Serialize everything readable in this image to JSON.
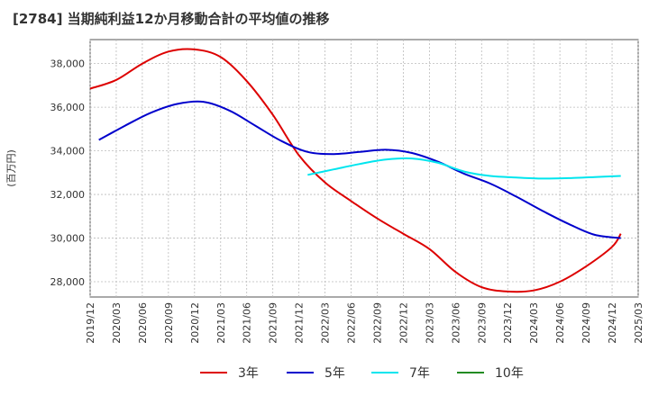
{
  "chart_data": {
    "type": "line",
    "title": "[2784]  当期純利益12か月移動合計の平均値の推移",
    "ylabel": "(百万円)",
    "xlabel": "",
    "ylim": [
      27300,
      39100
    ],
    "yticks": [
      28000,
      30000,
      32000,
      34000,
      36000,
      38000
    ],
    "ytick_labels": [
      "28,000",
      "30,000",
      "32,000",
      "34,000",
      "36,000",
      "38,000"
    ],
    "xlim": [
      "2019-12",
      "2025-03"
    ],
    "xtick_labels": [
      "2019/12",
      "2020/03",
      "2020/06",
      "2020/09",
      "2020/12",
      "2021/03",
      "2021/06",
      "2021/09",
      "2021/12",
      "2022/03",
      "2022/06",
      "2022/09",
      "2022/12",
      "2023/03",
      "2023/06",
      "2023/09",
      "2023/12",
      "2024/03",
      "2024/06",
      "2024/09",
      "2024/12",
      "2025/03"
    ],
    "grid": true,
    "legend_position": "bottom",
    "series": [
      {
        "name": "3年",
        "color": "#dd0000",
        "points": [
          [
            "2019-12",
            36850
          ],
          [
            "2020-03",
            37250
          ],
          [
            "2020-06",
            38000
          ],
          [
            "2020-09",
            38550
          ],
          [
            "2020-12",
            38650
          ],
          [
            "2021-03",
            38300
          ],
          [
            "2021-06",
            37200
          ],
          [
            "2021-09",
            35650
          ],
          [
            "2021-12",
            33800
          ],
          [
            "2022-03",
            32550
          ],
          [
            "2022-06",
            31700
          ],
          [
            "2022-09",
            30900
          ],
          [
            "2022-12",
            30200
          ],
          [
            "2023-03",
            29500
          ],
          [
            "2023-06",
            28450
          ],
          [
            "2023-09",
            27750
          ],
          [
            "2023-12",
            27550
          ],
          [
            "2024-03",
            27600
          ],
          [
            "2024-06",
            28000
          ],
          [
            "2024-09",
            28700
          ],
          [
            "2024-12",
            29600
          ],
          [
            "2025-01",
            30200
          ]
        ]
      },
      {
        "name": "5年",
        "color": "#0000cc",
        "points": [
          [
            "2020-01",
            34500
          ],
          [
            "2020-04",
            35150
          ],
          [
            "2020-07",
            35750
          ],
          [
            "2020-10",
            36150
          ],
          [
            "2021-01",
            36250
          ],
          [
            "2021-04",
            35850
          ],
          [
            "2021-07",
            35150
          ],
          [
            "2021-10",
            34450
          ],
          [
            "2022-01",
            33950
          ],
          [
            "2022-04",
            33850
          ],
          [
            "2022-07",
            33950
          ],
          [
            "2022-10",
            34050
          ],
          [
            "2023-01",
            33900
          ],
          [
            "2023-04",
            33500
          ],
          [
            "2023-07",
            32950
          ],
          [
            "2023-10",
            32500
          ],
          [
            "2024-01",
            31900
          ],
          [
            "2024-04",
            31250
          ],
          [
            "2024-07",
            30650
          ],
          [
            "2024-10",
            30150
          ],
          [
            "2025-01",
            30000
          ]
        ]
      },
      {
        "name": "7年",
        "color": "#00e5ee",
        "points": [
          [
            "2022-01",
            32900
          ],
          [
            "2022-04",
            33150
          ],
          [
            "2022-07",
            33400
          ],
          [
            "2022-10",
            33600
          ],
          [
            "2023-01",
            33650
          ],
          [
            "2023-04",
            33450
          ],
          [
            "2023-07",
            33050
          ],
          [
            "2023-10",
            32850
          ],
          [
            "2024-01",
            32780
          ],
          [
            "2024-04",
            32730
          ],
          [
            "2024-07",
            32750
          ],
          [
            "2024-10",
            32800
          ],
          [
            "2025-01",
            32850
          ]
        ]
      },
      {
        "name": "10年",
        "color": "#228b22",
        "points": []
      }
    ]
  }
}
